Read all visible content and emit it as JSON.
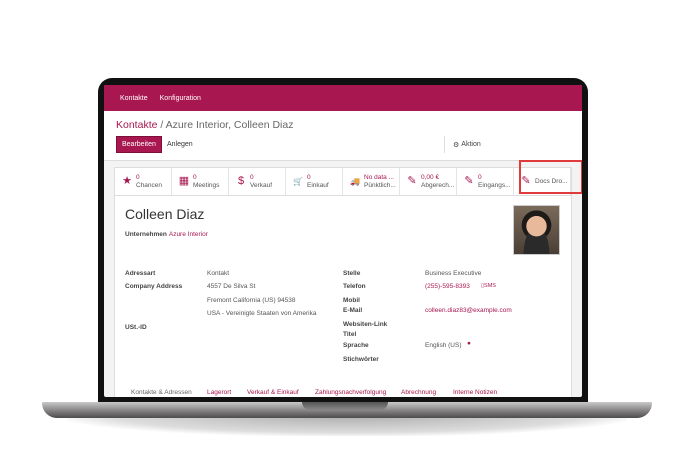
{
  "nav": {
    "items": [
      "Kontakte",
      "Konfiguration"
    ]
  },
  "breadcrumb": {
    "root": "Kontakte",
    "separator": " / ",
    "current": "Azure Interior, Colleen Diaz"
  },
  "toolbar": {
    "edit": "Bearbeiten",
    "create": "Anlegen",
    "action": "Aktion"
  },
  "stats": [
    {
      "icon": "star-icon",
      "glyph": "★",
      "value": "0",
      "label": "Chancen"
    },
    {
      "icon": "calendar-icon",
      "glyph": "▦",
      "value": "0",
      "label": "Meetings"
    },
    {
      "icon": "dollar-icon",
      "glyph": "$",
      "value": "0",
      "label": "Verkauf"
    },
    {
      "icon": "cart-icon",
      "glyph": "🛒",
      "value": "0",
      "label": "Einkauf"
    },
    {
      "icon": "truck-icon",
      "glyph": "🚚",
      "value": "No data ...",
      "label": "Pünktlich..."
    },
    {
      "icon": "edit-icon",
      "glyph": "✎",
      "value": "0,00 €",
      "label": "Abgerech..."
    },
    {
      "icon": "edit-icon",
      "glyph": "✎",
      "value": "0",
      "label": "Eingangs..."
    },
    {
      "icon": "edit-icon",
      "glyph": "✎",
      "value": "",
      "label": "Docs Dro..."
    }
  ],
  "accent": "#a8174f",
  "highlight": "#e03a3a",
  "contact": {
    "name": "Colleen Diaz",
    "company_label": "Unternehmen",
    "company": "Azure Interior",
    "address_type_label": "Adressart",
    "address_type": "Kontakt",
    "company_address_label": "Company Address",
    "street": "4557 De Silva St",
    "city": "Fremont California (US) 94538",
    "country": "USA - Vereinigte Staaten von Amerika",
    "vat_label": "USt.-ID",
    "job_label": "Stelle",
    "job": "Business Executive",
    "phone_label": "Telefon",
    "phone": "(255)-595-8393",
    "sms": "SMS",
    "mobile_label": "Mobil",
    "email_label": "E-Mail",
    "email": "colleen.diaz83@example.com",
    "website_label": "Websiten-Link",
    "title_label": "Titel",
    "language_label": "Sprache",
    "language": "English (US)",
    "tags_label": "Stichwörter"
  },
  "tabs": [
    "Kontakte & Adressen",
    "Lagerort",
    "Verkauf & Einkauf",
    "Zahlungsnachverfolgung",
    "Abrechnung",
    "Interne Notizen"
  ]
}
